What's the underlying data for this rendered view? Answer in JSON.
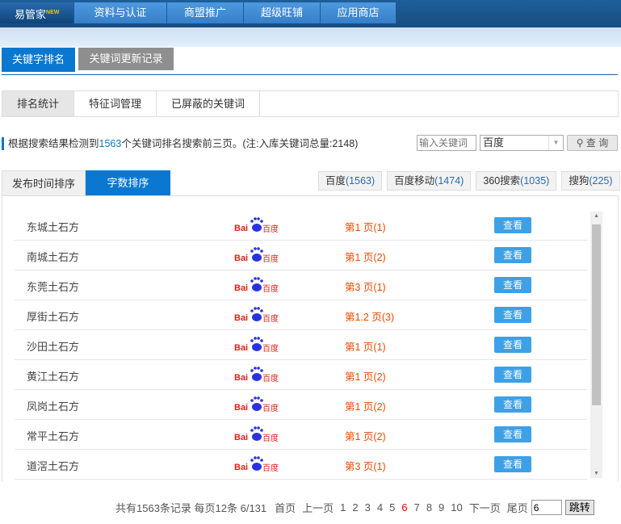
{
  "topnav": {
    "home": "易管家",
    "home_badge": "NEW",
    "items": [
      "资料与认证",
      "商盟推广",
      "超级旺铺",
      "应用商店"
    ]
  },
  "main_tabs": [
    {
      "label": "关键字排名",
      "active": true
    },
    {
      "label": "关键词更新记录",
      "active": false
    }
  ],
  "sub_tabs": [
    {
      "label": "排名统计",
      "active": true
    },
    {
      "label": "特征词管理"
    },
    {
      "label": "已屏蔽的关键词"
    }
  ],
  "info": {
    "prefix": "根据搜索结果检测到",
    "count": "1563",
    "suffix": "个关键词排名搜索前三页。(注:入库关键词总量:2148)"
  },
  "search": {
    "placeholder": "输入关键词",
    "engine": "百度",
    "button": "查 询"
  },
  "sort_tabs": [
    {
      "label": "发布时间排序"
    },
    {
      "label": "字数排序",
      "active": true
    }
  ],
  "engines": [
    {
      "name": "百度",
      "count": "(1563)"
    },
    {
      "name": "百度移动",
      "count": "(1474)"
    },
    {
      "name": "360搜索",
      "count": "(1035)"
    },
    {
      "name": "搜狗",
      "count": "(225)"
    }
  ],
  "rows": [
    {
      "name": "东城土石方",
      "engine_logo": "Bai百度",
      "rank": "第1 页(1)",
      "action": "查看"
    },
    {
      "name": "南城土石方",
      "engine_logo": "Bai百度",
      "rank": "第1 页(2)",
      "action": "查看"
    },
    {
      "name": "东莞土石方",
      "engine_logo": "Bai百度",
      "rank": "第3 页(1)",
      "action": "查看"
    },
    {
      "name": "厚街土石方",
      "engine_logo": "Bai百度",
      "rank": "第1.2 页(3)",
      "action": "查看"
    },
    {
      "name": "沙田土石方",
      "engine_logo": "Bai百度",
      "rank": "第1 页(1)",
      "action": "查看"
    },
    {
      "name": "黄江土石方",
      "engine_logo": "Bai百度",
      "rank": "第1 页(2)",
      "action": "查看"
    },
    {
      "name": "凤岗土石方",
      "engine_logo": "Bai百度",
      "rank": "第1 页(2)",
      "action": "查看"
    },
    {
      "name": "常平土石方",
      "engine_logo": "Bai百度",
      "rank": "第1 页(2)",
      "action": "查看"
    },
    {
      "name": "道滘土石方",
      "engine_logo": "Bai百度",
      "rank": "第3 页(1)",
      "action": "查看"
    }
  ],
  "pager": {
    "summary": "共有1563条记录 每页12条 6/131",
    "first": "首页",
    "prev": "上一页",
    "pages": [
      "1",
      "2",
      "3",
      "4",
      "5",
      "6",
      "7",
      "8",
      "9",
      "10"
    ],
    "current": "6",
    "next": "下一页",
    "last": "尾页",
    "jump_value": "6",
    "jump": "跳转"
  },
  "colors": {
    "accent": "#0a78d0",
    "rank": "#f04a00",
    "view_button": "#3ea0e6"
  }
}
